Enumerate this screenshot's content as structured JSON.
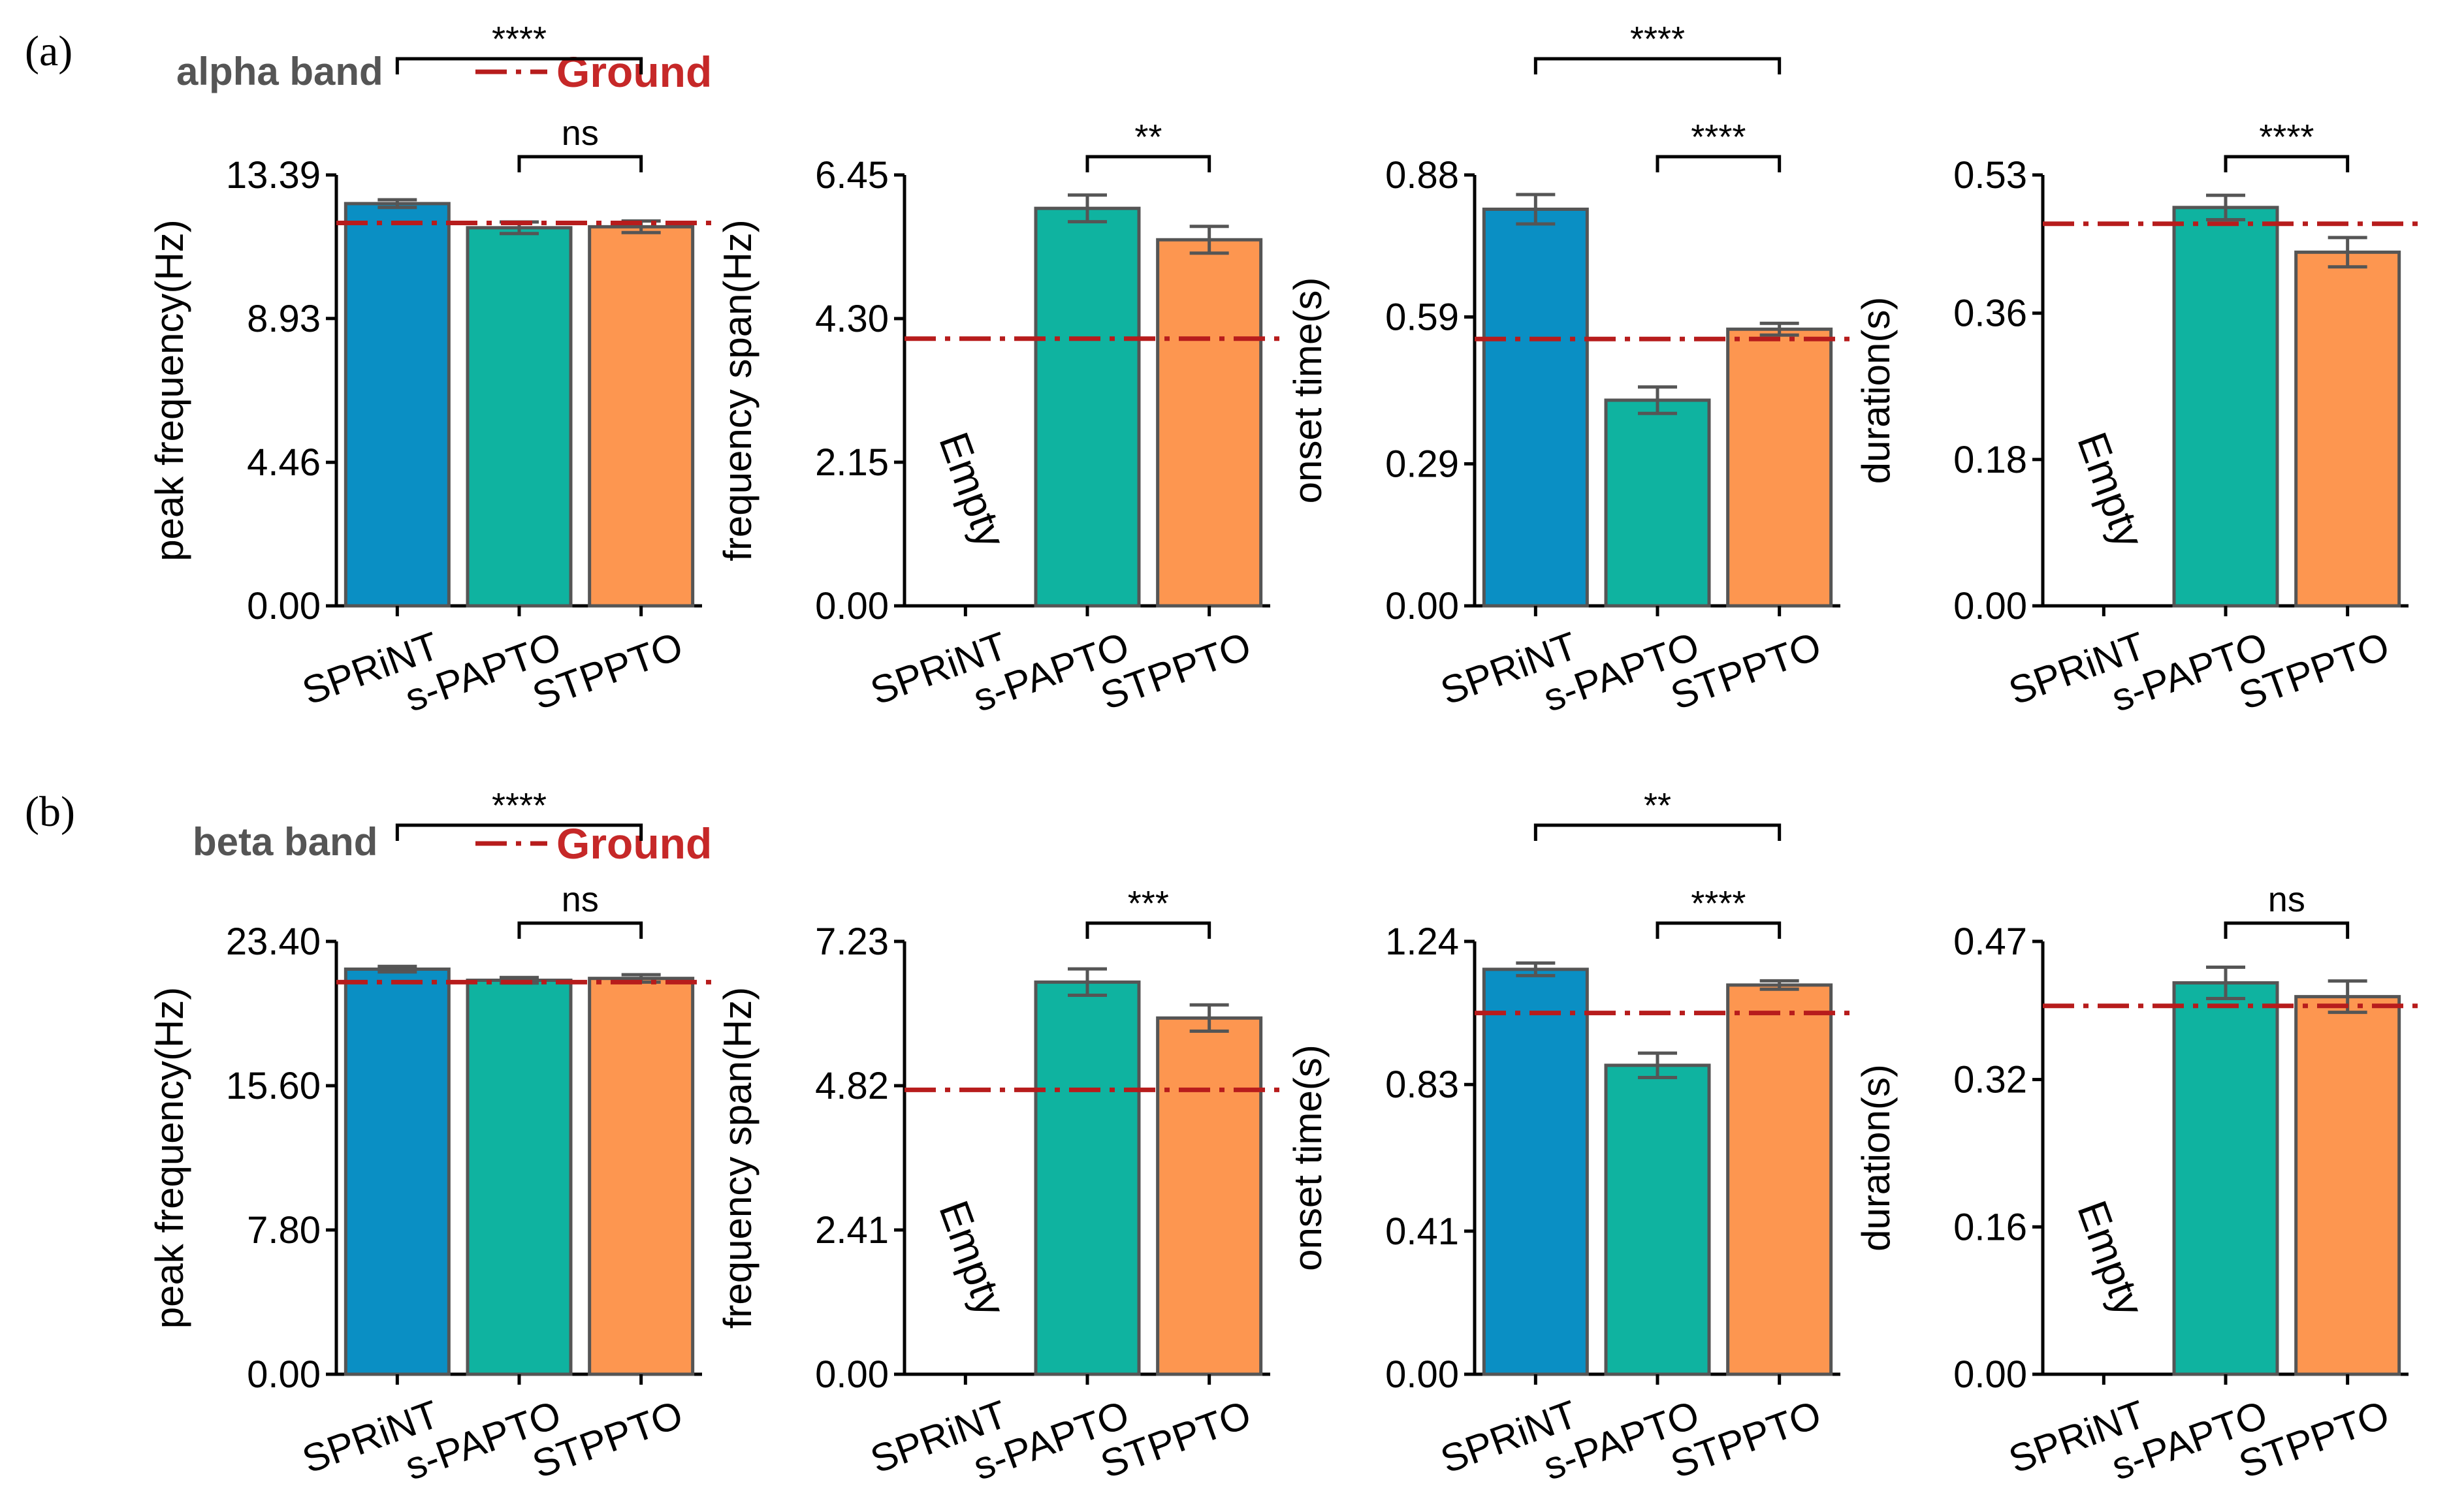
{
  "colors": {
    "SPRiNT": "#0a8fc4",
    "s-PAPTO": "#0fb3a0",
    "STPPTO": "#fd9650",
    "ground": "#b71c1c",
    "legend_text": "#c62828"
  },
  "legend": {
    "label": "Ground",
    "style": "dash-dot"
  },
  "rows": [
    {
      "panel_label": "(a)",
      "band_title": "alpha band"
    },
    {
      "panel_label": "(b)",
      "band_title": "beta band"
    }
  ],
  "chart_data": [
    {
      "type": "bar",
      "row": 0,
      "col": 0,
      "band": "alpha band",
      "ylabel": "peak frequency(Hz)",
      "yticks": [
        0,
        4.46,
        8.93,
        13.39
      ],
      "ytick_labels": [
        "0.00",
        "4.46",
        "8.93",
        "13.39"
      ],
      "ylim": [
        0,
        13.39
      ],
      "categories": [
        "SPRiNT",
        "s-PAPTO",
        "STPPTO"
      ],
      "values": [
        12.5,
        11.75,
        11.78
      ],
      "errors": [
        0.12,
        0.18,
        0.18
      ],
      "ground": 11.9,
      "empty": [],
      "significance": [
        {
          "from": 0,
          "to": 2,
          "label": "****",
          "level": 1
        },
        {
          "from": 1,
          "to": 2,
          "label": "ns",
          "level": 0
        }
      ]
    },
    {
      "type": "bar",
      "row": 0,
      "col": 1,
      "band": "alpha band",
      "ylabel": "frequency span(Hz)",
      "yticks": [
        0,
        2.15,
        4.3,
        6.45
      ],
      "ytick_labels": [
        "0.00",
        "2.15",
        "4.30",
        "6.45"
      ],
      "ylim": [
        0,
        6.45
      ],
      "categories": [
        "SPRiNT",
        "s-PAPTO",
        "STPPTO"
      ],
      "values": [
        null,
        5.95,
        5.48
      ],
      "errors": [
        null,
        0.2,
        0.2
      ],
      "ground": 4.0,
      "empty": [
        0
      ],
      "empty_label": "Empty",
      "significance": [
        {
          "from": 1,
          "to": 2,
          "label": "**",
          "level": 0
        }
      ]
    },
    {
      "type": "bar",
      "row": 0,
      "col": 2,
      "band": "alpha band",
      "ylabel": "onset time(s)",
      "yticks": [
        0,
        0.29,
        0.59,
        0.88
      ],
      "ytick_labels": [
        "0.00",
        "0.29",
        "0.59",
        "0.88"
      ],
      "ylim": [
        0,
        0.88
      ],
      "categories": [
        "SPRiNT",
        "s-PAPTO",
        "STPPTO"
      ],
      "values": [
        0.81,
        0.42,
        0.565
      ],
      "errors": [
        0.03,
        0.027,
        0.012
      ],
      "ground": 0.545,
      "empty": [],
      "significance": [
        {
          "from": 0,
          "to": 2,
          "label": "****",
          "level": 1
        },
        {
          "from": 1,
          "to": 2,
          "label": "****",
          "level": 0
        }
      ]
    },
    {
      "type": "bar",
      "row": 0,
      "col": 3,
      "band": "alpha band",
      "ylabel": "duration(s)",
      "yticks": [
        0,
        0.18,
        0.36,
        0.53
      ],
      "ytick_labels": [
        "0.00",
        "0.18",
        "0.36",
        "0.53"
      ],
      "ylim": [
        0,
        0.53
      ],
      "categories": [
        "SPRiNT",
        "s-PAPTO",
        "STPPTO"
      ],
      "values": [
        null,
        0.49,
        0.435
      ],
      "errors": [
        null,
        0.015,
        0.018
      ],
      "ground": 0.47,
      "empty": [
        0
      ],
      "empty_label": "Empty",
      "significance": [
        {
          "from": 1,
          "to": 2,
          "label": "****",
          "level": 0
        }
      ]
    },
    {
      "type": "bar",
      "row": 1,
      "col": 0,
      "band": "beta band",
      "ylabel": "peak frequency(Hz)",
      "yticks": [
        0,
        7.8,
        15.6,
        23.4
      ],
      "ytick_labels": [
        "0.00",
        "7.80",
        "15.60",
        "23.40"
      ],
      "ylim": [
        0,
        23.4
      ],
      "categories": [
        "SPRiNT",
        "s-PAPTO",
        "STPPTO"
      ],
      "values": [
        21.9,
        21.3,
        21.4
      ],
      "errors": [
        0.15,
        0.15,
        0.2
      ],
      "ground": 21.2,
      "empty": [],
      "significance": [
        {
          "from": 0,
          "to": 2,
          "label": "****",
          "level": 1
        },
        {
          "from": 1,
          "to": 2,
          "label": "ns",
          "level": 0
        }
      ]
    },
    {
      "type": "bar",
      "row": 1,
      "col": 1,
      "band": "beta band",
      "ylabel": "frequency span(Hz)",
      "yticks": [
        0,
        2.41,
        4.82,
        7.23
      ],
      "ytick_labels": [
        "0.00",
        "2.41",
        "4.82",
        "7.23"
      ],
      "ylim": [
        0,
        7.23
      ],
      "categories": [
        "SPRiNT",
        "s-PAPTO",
        "STPPTO"
      ],
      "values": [
        null,
        6.55,
        5.95
      ],
      "errors": [
        null,
        0.22,
        0.22
      ],
      "ground": 4.75,
      "empty": [
        0
      ],
      "empty_label": "Empty",
      "significance": [
        {
          "from": 1,
          "to": 2,
          "label": "***",
          "level": 0
        }
      ]
    },
    {
      "type": "bar",
      "row": 1,
      "col": 2,
      "band": "beta band",
      "ylabel": "onset time(s)",
      "yticks": [
        0,
        0.41,
        0.83,
        1.24
      ],
      "ytick_labels": [
        "0.00",
        "0.41",
        "0.83",
        "1.24"
      ],
      "ylim": [
        0,
        1.24
      ],
      "categories": [
        "SPRiNT",
        "s-PAPTO",
        "STPPTO"
      ],
      "values": [
        1.16,
        0.885,
        1.115
      ],
      "errors": [
        0.018,
        0.035,
        0.012
      ],
      "ground": 1.035,
      "empty": [],
      "significance": [
        {
          "from": 0,
          "to": 2,
          "label": "**",
          "level": 1
        },
        {
          "from": 1,
          "to": 2,
          "label": "****",
          "level": 0
        }
      ]
    },
    {
      "type": "bar",
      "row": 1,
      "col": 3,
      "band": "beta band",
      "ylabel": "duration(s)",
      "yticks": [
        0,
        0.16,
        0.32,
        0.47
      ],
      "ytick_labels": [
        "0.00",
        "0.16",
        "0.32",
        "0.47"
      ],
      "ylim": [
        0,
        0.47
      ],
      "categories": [
        "SPRiNT",
        "s-PAPTO",
        "STPPTO"
      ],
      "values": [
        null,
        0.425,
        0.41
      ],
      "errors": [
        null,
        0.017,
        0.017
      ],
      "ground": 0.4,
      "empty": [
        0
      ],
      "empty_label": "Empty",
      "significance": [
        {
          "from": 1,
          "to": 2,
          "label": "ns",
          "level": 0
        }
      ]
    }
  ]
}
